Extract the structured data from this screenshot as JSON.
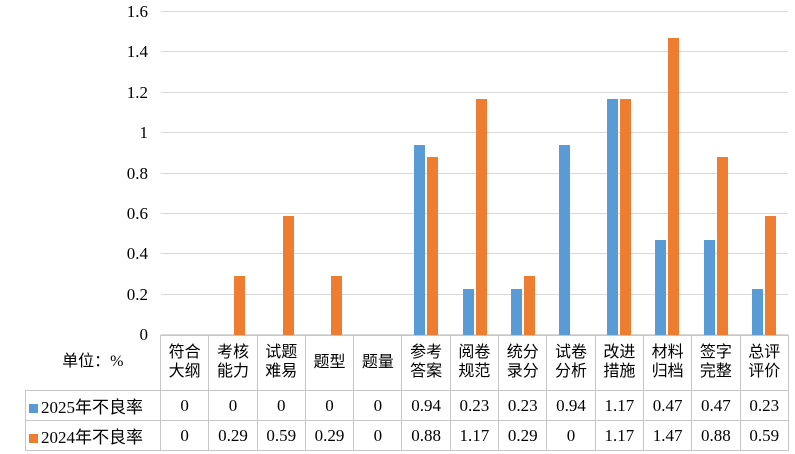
{
  "unit_label": "单位：%",
  "chart_data": {
    "type": "bar",
    "title": "",
    "xlabel": "",
    "ylabel": "单位：%",
    "ylim": [
      0,
      1.6
    ],
    "ytick_step": 0.2,
    "yticks": [
      "0",
      "0.2",
      "0.4",
      "0.6",
      "0.8",
      "1",
      "1.2",
      "1.4",
      "1.6"
    ],
    "grid": true,
    "legend_position": "table-left",
    "categories": [
      "符合大纲",
      "考核能力",
      "试题难易",
      "题型",
      "题量",
      "参考答案",
      "阅卷规范",
      "统分录分",
      "试卷分析",
      "改进措施",
      "材料归档",
      "签字完整",
      "总评评价"
    ],
    "series": [
      {
        "name": "2025年不良率",
        "color": "#5B9BD5",
        "values": [
          0,
          0,
          0,
          0,
          0,
          0.94,
          0.23,
          0.23,
          0.94,
          1.17,
          0.47,
          0.47,
          0.23
        ]
      },
      {
        "name": "2024年不良率",
        "color": "#ED7D31",
        "values": [
          0,
          0.29,
          0.59,
          0.29,
          0,
          0.88,
          1.17,
          0.29,
          0,
          1.17,
          1.47,
          0.88,
          0.59
        ]
      }
    ]
  },
  "table": {
    "corner_label": "单位：%",
    "headers": [
      "符合\n大纲",
      "考核\n能力",
      "试题\n难易",
      "题型",
      "题量",
      "参考\n答案",
      "阅卷\n规范",
      "统分\n录分",
      "试卷\n分析",
      "改进\n措施",
      "材料\n归档",
      "签字\n完整",
      "总评\n评价"
    ],
    "rows": [
      {
        "label": "2025年不良率",
        "color": "#5B9BD5",
        "values": [
          "0",
          "0",
          "0",
          "0",
          "0",
          "0.94",
          "0.23",
          "0.23",
          "0.94",
          "1.17",
          "0.47",
          "0.47",
          "0.23"
        ]
      },
      {
        "label": "2024年不良率",
        "color": "#ED7D31",
        "values": [
          "0",
          "0.29",
          "0.59",
          "0.29",
          "0",
          "0.88",
          "1.17",
          "0.29",
          "0",
          "1.17",
          "1.47",
          "0.88",
          "0.59"
        ]
      }
    ]
  }
}
